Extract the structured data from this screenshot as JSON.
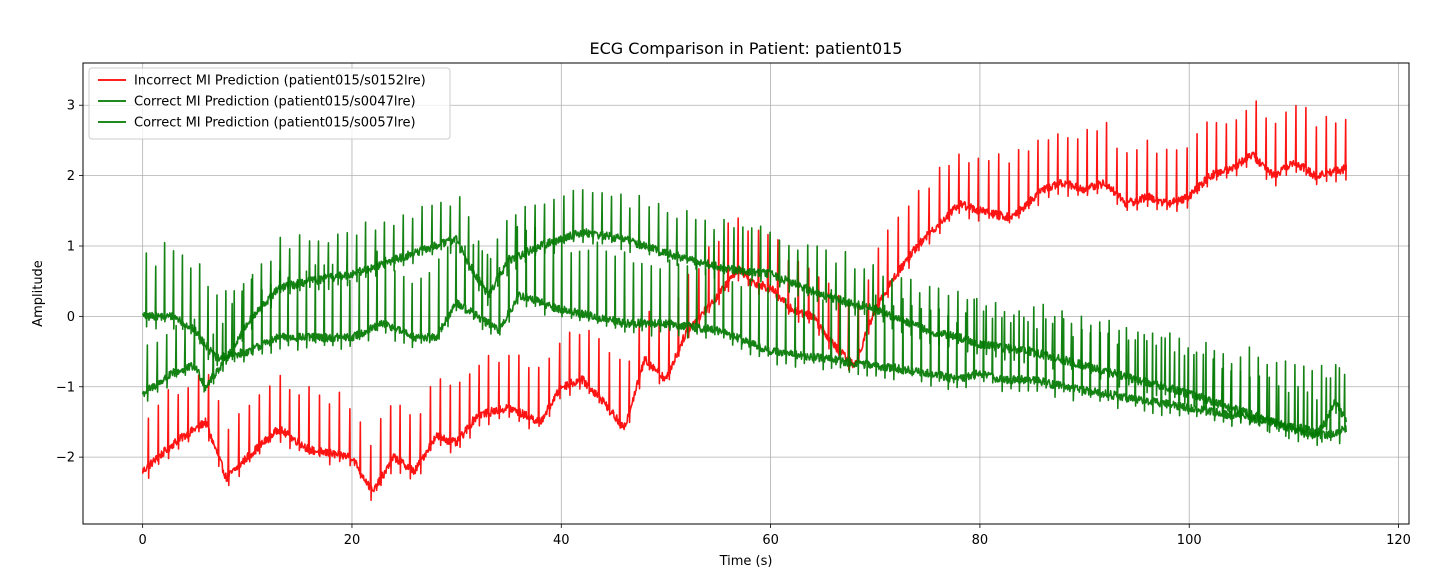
{
  "chart_data": {
    "type": "line",
    "title": "ECG Comparison in Patient: patient015",
    "xlabel": "Time (s)",
    "ylabel": "Amplitude",
    "xlim": [
      -5.7,
      121
    ],
    "ylim": [
      -2.95,
      3.6
    ],
    "xticks": [
      0,
      20,
      40,
      60,
      80,
      100,
      120
    ],
    "yticks": [
      -2,
      -1,
      0,
      1,
      2,
      3
    ],
    "grid": true,
    "legend_position": "top-left",
    "series": [
      {
        "name": "Incorrect MI Prediction (patient015/s0152lre)",
        "color": "#ff0000",
        "baseline": {
          "x": [
            0,
            3,
            6,
            8,
            10,
            13,
            16,
            20,
            22,
            24,
            26,
            28,
            30,
            32,
            35,
            38,
            40,
            42,
            44,
            46,
            48,
            50,
            52,
            55,
            57,
            58,
            60,
            62,
            64,
            66,
            68,
            70,
            72,
            74,
            76,
            78,
            80,
            83,
            86,
            88,
            90,
            92,
            94,
            96,
            98,
            100,
            102,
            104,
            106,
            108,
            110,
            112,
            115
          ],
          "y": [
            -2.2,
            -1.8,
            -1.5,
            -2.3,
            -2.0,
            -1.6,
            -1.9,
            -2.0,
            -2.5,
            -2.0,
            -2.2,
            -1.7,
            -1.8,
            -1.4,
            -1.3,
            -1.5,
            -1.0,
            -0.9,
            -1.2,
            -1.6,
            -0.6,
            -0.9,
            -0.2,
            0.3,
            0.7,
            0.5,
            0.4,
            0.1,
            0.0,
            -0.4,
            -0.7,
            0.1,
            0.6,
            1.0,
            1.3,
            1.6,
            1.5,
            1.4,
            1.8,
            1.9,
            1.8,
            1.9,
            1.6,
            1.7,
            1.6,
            1.7,
            2.0,
            2.1,
            2.3,
            2.0,
            2.2,
            2.0,
            2.1
          ]
        },
        "r_peak_height": 0.75,
        "beat_interval_s": 0.95
      },
      {
        "name": "Correct MI Prediction (patient015/s0047lre)",
        "color": "#007800",
        "baseline": {
          "x": [
            0,
            3,
            5,
            7,
            10,
            13,
            17,
            20,
            23,
            26,
            28,
            30,
            32,
            34,
            36,
            40,
            43,
            46,
            50,
            55,
            60,
            65,
            70,
            75,
            78,
            80,
            82,
            85,
            88,
            92,
            96,
            100,
            104,
            108,
            111,
            113,
            115
          ],
          "y": [
            0.0,
            0.0,
            -0.2,
            -0.6,
            -0.5,
            -0.3,
            -0.3,
            -0.3,
            -0.1,
            -0.3,
            -0.3,
            0.2,
            0.0,
            -0.2,
            0.3,
            0.1,
            0.0,
            -0.1,
            -0.1,
            -0.2,
            -0.5,
            -0.6,
            -0.7,
            -0.8,
            -0.9,
            -0.8,
            -0.9,
            -0.9,
            -1.0,
            -1.1,
            -1.2,
            -1.3,
            -1.4,
            -1.5,
            -1.6,
            -1.7,
            -1.6
          ]
        },
        "r_peak_height": 0.9,
        "beat_interval_s": 0.85
      },
      {
        "name": "Correct MI Prediction (patient015/s0057lre)",
        "color": "#007800",
        "baseline": {
          "x": [
            0,
            3,
            5,
            6,
            8,
            10,
            13,
            16,
            20,
            24,
            28,
            30,
            31,
            33,
            35,
            38,
            42,
            46,
            50,
            55,
            60,
            65,
            70,
            75,
            78,
            80,
            85,
            90,
            95,
            100,
            104,
            108,
            110,
            112,
            113,
            114,
            115
          ],
          "y": [
            -1.1,
            -0.8,
            -0.7,
            -1.0,
            -0.6,
            -0.1,
            0.4,
            0.5,
            0.6,
            0.8,
            1.0,
            1.1,
            0.8,
            0.3,
            0.8,
            1.0,
            1.2,
            1.1,
            0.9,
            0.7,
            0.6,
            0.3,
            0.1,
            -0.2,
            -0.3,
            -0.4,
            -0.5,
            -0.7,
            -0.9,
            -1.1,
            -1.3,
            -1.5,
            -1.6,
            -1.7,
            -1.5,
            -1.2,
            -1.5
          ]
        },
        "r_peak_height": 0.6,
        "beat_interval_s": 0.9
      }
    ]
  }
}
